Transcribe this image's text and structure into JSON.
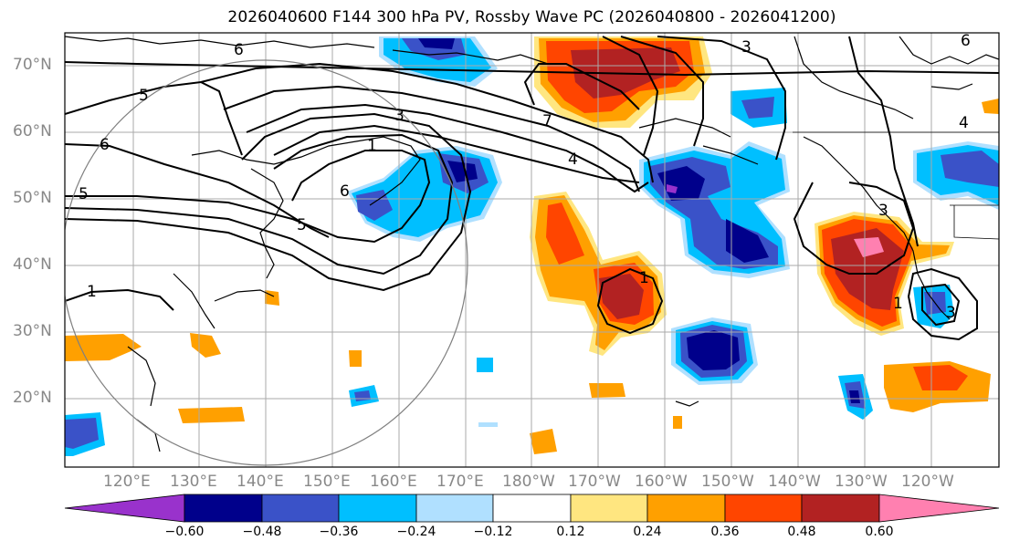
{
  "title": "2026040600 F144 300 hPa PV, Rossby Wave PC (2026040800 - 2026041200)",
  "lat_labels": [
    "70°N",
    "60°N",
    "50°N",
    "40°N",
    "30°N",
    "20°N"
  ],
  "lon_labels": [
    "120°E",
    "130°E",
    "140°E",
    "150°E",
    "160°E",
    "170°E",
    "180°W",
    "170°W",
    "160°W",
    "150°W",
    "140°W",
    "130°W",
    "120°W"
  ],
  "colorbar": {
    "ticks": [
      "−0.60",
      "−0.48",
      "−0.36",
      "−0.24",
      "−0.12",
      "0.12",
      "0.24",
      "0.36",
      "0.48",
      "0.60"
    ],
    "colors": [
      "#9932cc",
      "#00008b",
      "#3a52c8",
      "#00bfff",
      "#b0e0ff",
      "#ffffff",
      "#ffe680",
      "#ffa000",
      "#ff4500",
      "#b22222",
      "#ff80b0"
    ]
  },
  "contour_labels": [
    "6",
    "5",
    "6",
    "5",
    "3",
    "1",
    "6",
    "5",
    "7",
    "4",
    "3",
    "1",
    "1",
    "3",
    "1",
    "4",
    "6",
    "3"
  ],
  "colors": {
    "grid": "#aaaaaa",
    "coast": "#000000",
    "contour": "#000000",
    "circle": "#808080"
  }
}
